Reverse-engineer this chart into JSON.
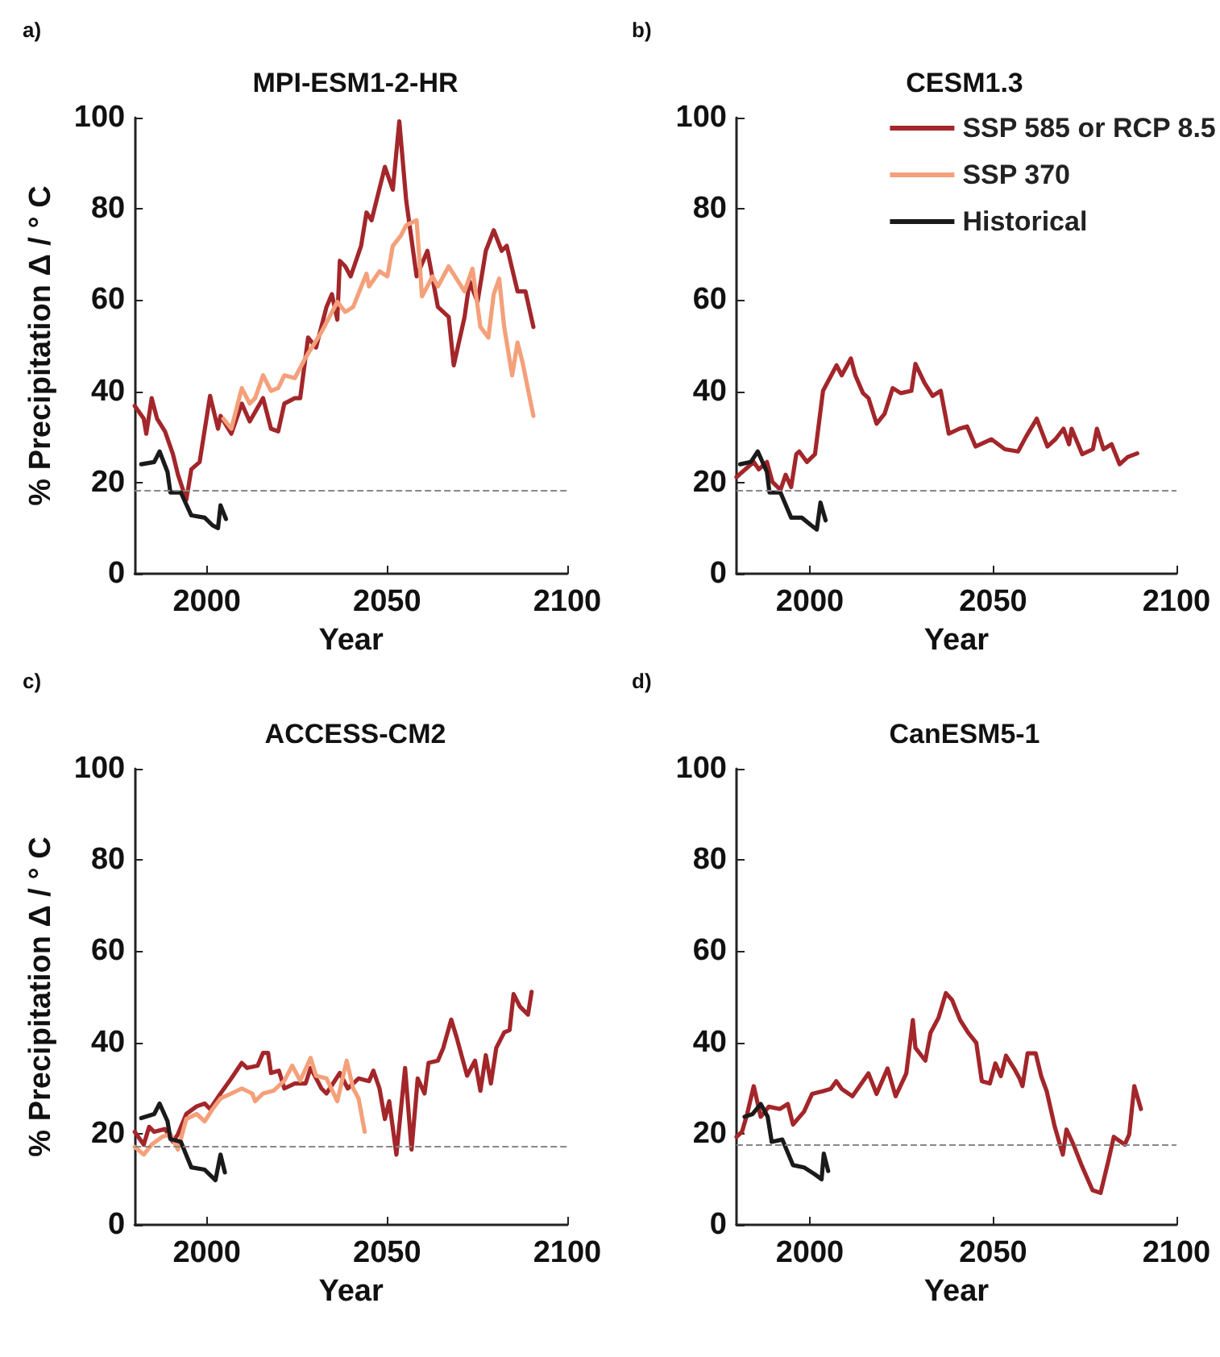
{
  "chart_data": [
    {
      "type": "line",
      "title": "MPI-ESM1-2-HR",
      "annotations": [
        "a)"
      ],
      "xlabel": "Year",
      "ylabel": "% Precipitation Δ / ° C",
      "xlim": [
        1980,
        2100
      ],
      "xticks": [
        2000,
        2050,
        2100
      ],
      "ylim": [
        0,
        100
      ],
      "yticks": [
        0,
        20,
        40,
        60,
        80,
        100
      ],
      "grid": false,
      "legend": false,
      "marker": "none",
      "ref_lines": [
        {
          "axis": "y",
          "value": 18.4,
          "color": "#888888",
          "line_style": "dashed"
        }
      ],
      "series": [
        {
          "color": "#a3262a",
          "x": [
            1980,
            1982.5,
            1983.2,
            1984.7,
            1986.2,
            1988.4,
            1990.6,
            1992,
            1994.3,
            1995.7,
            1998,
            2000.9,
            2003.1,
            2003.8,
            2006.8,
            2009.7,
            2011.9,
            2015.6,
            2017.8,
            2019.8,
            2021.5,
            2024.4,
            2025.9,
            2028.1,
            2030.3,
            2033.2,
            2034.7,
            2036.2,
            2036.9,
            2038.4,
            2039.9,
            2042.8,
            2044.3,
            2045.7,
            2049.4,
            2051.6,
            2053.4,
            2055.3,
            2058.2,
            2061.2,
            2064.1,
            2067.1,
            2068.5,
            2071.5,
            2072.9,
            2075.1,
            2077.4,
            2079.6,
            2081.8,
            2083.2,
            2086.2,
            2088.4,
            2090.6
          ],
          "values": [
            36.8,
            34,
            30.7,
            38.5,
            34,
            31.2,
            26.2,
            21.7,
            16.2,
            22.9,
            24.5,
            39,
            31.8,
            34.6,
            30.7,
            37.3,
            33.4,
            38.5,
            31.8,
            31.2,
            37.3,
            38.5,
            38.5,
            51.8,
            49.6,
            58.5,
            61.3,
            55.7,
            68.6,
            67.4,
            65.2,
            71.9,
            79.2,
            77.5,
            89.2,
            84.2,
            99.2,
            81.9,
            65.2,
            70.8,
            58.5,
            56.3,
            45.7,
            56.3,
            64.1,
            59.6,
            70.8,
            75.3,
            70.8,
            71.9,
            61.9,
            61.9,
            54.1
          ]
        },
        {
          "color": "#f4a07a",
          "x": [
            2004.6,
            2006.8,
            2009.7,
            2011.9,
            2013.4,
            2015.6,
            2017.8,
            2019.8,
            2021.5,
            2024.4,
            2027.4,
            2031.8,
            2036.2,
            2038.4,
            2040.6,
            2044.3,
            2045,
            2047.9,
            2050.1,
            2051.6,
            2053.8,
            2055.3,
            2058.2,
            2059.7,
            2062.6,
            2064.1,
            2067.1,
            2071.5,
            2073.7,
            2075.9,
            2078.1,
            2079.6,
            2081.1,
            2082.5,
            2084.7,
            2086.2,
            2087.6,
            2090.6
          ],
          "values": [
            34,
            31.8,
            40.7,
            37.3,
            38.5,
            43.5,
            40.1,
            40.7,
            43.5,
            42.9,
            47.4,
            53,
            59.6,
            57.4,
            58.5,
            65.8,
            63,
            66.3,
            65.2,
            71.9,
            74.1,
            76.4,
            77.5,
            60.8,
            65.2,
            63,
            67.4,
            61.9,
            66.9,
            54.1,
            51.8,
            61.3,
            64.7,
            54.1,
            43.5,
            50.7,
            46.3,
            34.6
          ]
        },
        {
          "color": "#1a1a1a",
          "x": [
            1981.8,
            1985.4,
            1986.9,
            1989.1,
            1989.9,
            1992.8,
            1995.7,
            1999.4,
            2001.6,
            2003.1,
            2003.8,
            2005.3
          ],
          "values": [
            24,
            24.5,
            26.8,
            22.3,
            17.8,
            17.8,
            12.8,
            12.3,
            10.6,
            10,
            15,
            12
          ]
        }
      ]
    },
    {
      "type": "line",
      "title": "CESM1.3",
      "annotations": [
        "b)"
      ],
      "xlabel": "Year",
      "xlim": [
        1980,
        2100
      ],
      "xticks": [
        2000,
        2050,
        2100
      ],
      "ylim": [
        0,
        100
      ],
      "yticks": [
        0,
        20,
        40,
        60,
        80,
        100
      ],
      "grid": false,
      "legend": "top right",
      "marker": "none",
      "ref_lines": [
        {
          "axis": "y",
          "value": 18.4,
          "color": "#888888",
          "line_style": "dashed"
        }
      ],
      "series": [
        {
          "name": "SSP 585 or RCP 8.5",
          "color": "#a3262a",
          "x": [
            1980,
            1984.7,
            1986.1,
            1988.3,
            1989.8,
            1992,
            1993.4,
            1994.9,
            1996.3,
            1997.1,
            1999.2,
            2001.4,
            2003.6,
            2007.3,
            2008.7,
            2011.2,
            2012.4,
            2014.5,
            2016,
            2018.2,
            2020.4,
            2022.6,
            2024.8,
            2027.7,
            2028.8,
            2031.3,
            2033.5,
            2035.7,
            2037.9,
            2040.8,
            2042.9,
            2045.2,
            2049.5,
            2053.2,
            2056.8,
            2059,
            2061.9,
            2064.8,
            2067,
            2069.2,
            2070.7,
            2071.4,
            2074.3,
            2077.2,
            2078.3,
            2080.1,
            2082.3,
            2084.5,
            2086.7,
            2089.3
          ],
          "values": [
            21.2,
            24.5,
            22.9,
            24.5,
            20.1,
            18.4,
            21.7,
            19,
            26.2,
            26.8,
            24.5,
            26.2,
            40.1,
            45.7,
            43.5,
            47.2,
            43.5,
            39.6,
            38.5,
            32.9,
            35.1,
            40.7,
            39.6,
            40.1,
            46,
            41.8,
            39,
            40.1,
            30.7,
            31.8,
            32.3,
            27.9,
            29.5,
            27.3,
            26.8,
            30.1,
            34,
            27.9,
            29.5,
            31.8,
            28.4,
            31.8,
            26.2,
            27.3,
            31.8,
            27.3,
            28.4,
            24,
            25.6,
            26.4
          ]
        },
        {
          "name": "SSP 370",
          "color": "#f4a07a"
        },
        {
          "name": "Historical",
          "color": "#1a1a1a",
          "x": [
            1981,
            1983.9,
            1985.8,
            1988.3,
            1989,
            1992,
            1994.9,
            1997.8,
            2000.4,
            2001.9,
            2002.9,
            2004.3
          ],
          "values": [
            24,
            24.5,
            26.8,
            22.3,
            17.8,
            17.8,
            12.3,
            12.3,
            10.6,
            9.7,
            15.6,
            11.7
          ]
        }
      ]
    },
    {
      "type": "line",
      "title": "ACCESS-CM2",
      "annotations": [
        "c)"
      ],
      "xlabel": "Year",
      "ylabel": "% Precipitation Δ / ° C",
      "xlim": [
        1980,
        2100
      ],
      "xticks": [
        2000,
        2050,
        2100
      ],
      "ylim": [
        0,
        100
      ],
      "yticks": [
        0,
        20,
        40,
        60,
        80,
        100
      ],
      "grid": false,
      "legend": false,
      "marker": "none",
      "ref_lines": [
        {
          "axis": "y",
          "value": 17.3,
          "color": "#888888",
          "line_style": "dashed"
        }
      ],
      "series": [
        {
          "color": "#a3262a",
          "x": [
            1980,
            1982.5,
            1984,
            1985.4,
            1988.4,
            1990.6,
            1992,
            1994.3,
            1997.2,
            1999.4,
            2000.9,
            2003.8,
            2006.8,
            2009.7,
            2011.2,
            2014.1,
            2015.6,
            2017,
            2017.8,
            2020,
            2021.5,
            2024.4,
            2027.4,
            2028.8,
            2031.8,
            2033.2,
            2036.9,
            2039.1,
            2042.1,
            2045,
            2046.2,
            2047.9,
            2049.4,
            2050.6,
            2052.6,
            2055,
            2056.8,
            2058.5,
            2060.4,
            2061.5,
            2064.1,
            2065.6,
            2067.8,
            2069.3,
            2072.2,
            2074.4,
            2075.9,
            2077.4,
            2078.8,
            2080.3,
            2082.5,
            2084,
            2085.1,
            2086.9,
            2089.1,
            2090.1
          ],
          "values": [
            20.4,
            17.6,
            21.5,
            20.4,
            21,
            18.2,
            19.9,
            24.3,
            26,
            26.6,
            25.4,
            28.8,
            32.1,
            35.5,
            34.4,
            34.9,
            37.7,
            37.7,
            33.3,
            33.8,
            29.9,
            31,
            31,
            34.4,
            29.9,
            28.8,
            33.3,
            29.9,
            32.1,
            31.5,
            33.8,
            29.9,
            23.2,
            27.1,
            15.4,
            34.4,
            16.5,
            32.1,
            28.8,
            35.5,
            36,
            38.8,
            45,
            41.1,
            32.7,
            36,
            29.4,
            37.2,
            31,
            38.8,
            42.2,
            42.7,
            50.6,
            47.8,
            46.1,
            51.1
          ]
        },
        {
          "color": "#f4a07a",
          "x": [
            1980,
            1982.5,
            1984.7,
            1987.6,
            1989.9,
            1992,
            1994.3,
            1997.2,
            1999.4,
            2001.6,
            2003.8,
            2006.8,
            2009.7,
            2012.6,
            2013.4,
            2015.6,
            2018.5,
            2021.5,
            2023.7,
            2025.9,
            2028.8,
            2030.3,
            2033.2,
            2036.2,
            2038.8,
            2040.6,
            2042.1,
            2043.8
          ],
          "values": [
            17.1,
            15.4,
            17.6,
            19.3,
            19.9,
            16.5,
            23.2,
            24.3,
            22.7,
            25.4,
            27.7,
            28.8,
            29.9,
            28.8,
            27.1,
            28.8,
            29.4,
            31.6,
            34.9,
            31.6,
            36.6,
            32.7,
            32.1,
            27.1,
            36,
            29.9,
            27.7,
            20.4
          ]
        },
        {
          "color": "#1a1a1a",
          "x": [
            1981.8,
            1985.4,
            1986.9,
            1989.1,
            1989.9,
            1992.8,
            1995.7,
            1999.4,
            2002.4,
            2003.8,
            2005
          ],
          "values": [
            23.4,
            24.3,
            26.6,
            22.7,
            18.8,
            18.2,
            12.6,
            12.1,
            9.8,
            15.4,
            11.5
          ]
        }
      ]
    },
    {
      "type": "line",
      "title": "CanESM5-1",
      "annotations": [
        "d)"
      ],
      "xlabel": "Year",
      "xlim": [
        1980,
        2100
      ],
      "xticks": [
        2000,
        2050,
        2100
      ],
      "ylim": [
        0,
        100
      ],
      "yticks": [
        0,
        20,
        40,
        60,
        80,
        100
      ],
      "grid": false,
      "legend": false,
      "marker": "none",
      "ref_lines": [
        {
          "axis": "y",
          "value": 17.6,
          "color": "#888888",
          "line_style": "dashed"
        }
      ],
      "series": [
        {
          "color": "#a3262a",
          "x": [
            1980,
            1981.5,
            1982.9,
            1984.7,
            1986.6,
            1988.8,
            1991.8,
            1994,
            1995.4,
            1998.4,
            2000.6,
            2003.5,
            2005.7,
            2007.2,
            2008.7,
            2011.6,
            2016,
            2018.2,
            2021.2,
            2023.4,
            2026.3,
            2028.1,
            2028.8,
            2031.5,
            2032.9,
            2035.1,
            2037.1,
            2038.8,
            2041,
            2043.2,
            2045.4,
            2046.9,
            2049.1,
            2050.6,
            2052.1,
            2053.5,
            2055.7,
            2057.2,
            2058,
            2059.4,
            2061.6,
            2063.1,
            2064.6,
            2066.8,
            2069,
            2070,
            2071.9,
            2074.1,
            2077.1,
            2079.3,
            2081.5,
            2082.9,
            2085.9,
            2087.1,
            2088.5,
            2090.3
          ],
          "values": [
            19.3,
            20.4,
            24.3,
            30.4,
            23.7,
            25.9,
            25.4,
            26.5,
            22,
            24.8,
            28.7,
            29.3,
            29.8,
            31.5,
            29.8,
            28.2,
            33.2,
            28.7,
            34.3,
            28.2,
            33.2,
            44.9,
            38.8,
            36,
            42.1,
            45.4,
            50.8,
            49.3,
            44.9,
            42.1,
            39.9,
            31.5,
            31,
            35.4,
            32.6,
            37.1,
            34.3,
            32.1,
            30.4,
            37.6,
            37.6,
            32.6,
            29.3,
            21.5,
            15.4,
            20.9,
            17.6,
            13.1,
            7.6,
            7,
            14.3,
            19.3,
            17.6,
            19.8,
            30.4,
            25.4
          ]
        },
        {
          "color": "#1a1a1a",
          "x": [
            1982.2,
            1984.4,
            1986.6,
            1988.5,
            1989.6,
            1992.5,
            1995.4,
            1998.4,
            2001.3,
            2003.2,
            2003.8,
            2005
          ],
          "values": [
            23.7,
            24.3,
            26.5,
            23.7,
            18.2,
            18.7,
            13.1,
            12.6,
            11.1,
            10,
            15.6,
            11.8
          ]
        }
      ]
    }
  ]
}
